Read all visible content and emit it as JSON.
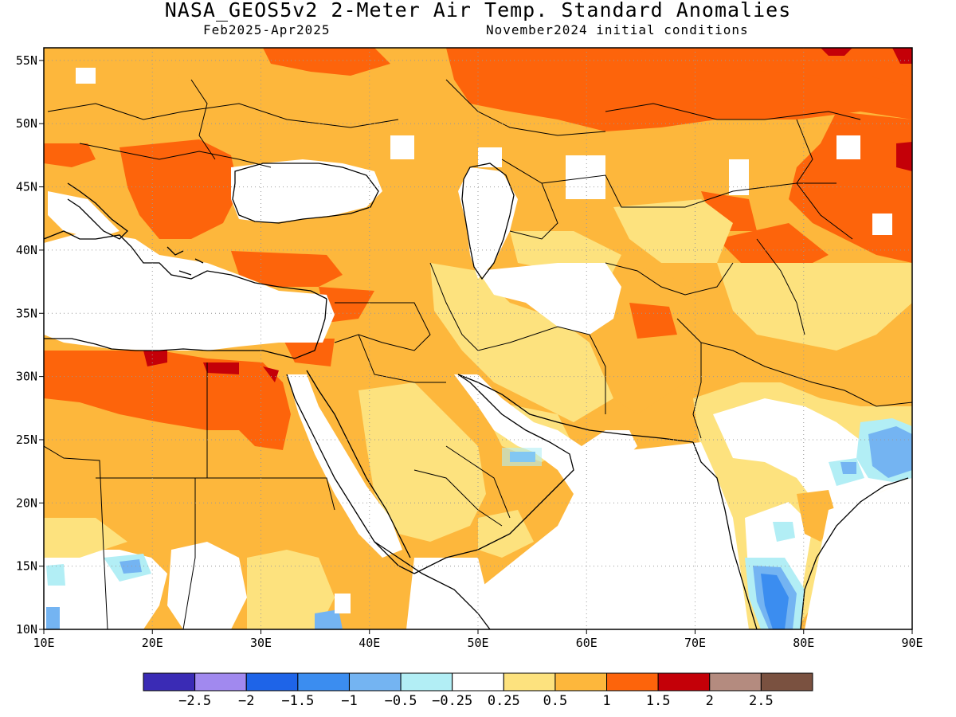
{
  "header": {
    "title": "NASA_GEOS5v2 2-Meter Air Temp. Standard Anomalies",
    "period": "Feb2025-Apr2025",
    "initial": "November2024 initial conditions"
  },
  "map": {
    "lon_range": [
      10,
      90
    ],
    "lat_range": [
      10,
      56
    ],
    "lon_ticks": [
      "10E",
      "20E",
      "30E",
      "40E",
      "50E",
      "60E",
      "70E",
      "80E",
      "90E"
    ],
    "lat_ticks": [
      "10N",
      "15N",
      "20N",
      "25N",
      "30N",
      "35N",
      "40N",
      "45N",
      "50N",
      "55N"
    ],
    "grid": true
  },
  "colorbar": {
    "colors": [
      "#3a2bb5",
      "#a189ef",
      "#1e64e8",
      "#3b8df0",
      "#74b4f2",
      "#b2eef5",
      "#ffffff",
      "#fde27e",
      "#fdb73c",
      "#fd640b",
      "#c40008",
      "#b48b7f",
      "#7a5140"
    ],
    "labels": [
      "-2.5",
      "-2",
      "-1.5",
      "-1",
      "-0.5",
      "-0.25",
      "0.25",
      "0.5",
      "1",
      "1.5",
      "2",
      "2.5"
    ]
  },
  "palette": {
    "warm1": "#fde27e",
    "warm2": "#fdb73c",
    "warm3": "#fd640b",
    "warm4": "#c40008",
    "cool1": "#b2eef5",
    "cool2": "#74b4f2",
    "cool3": "#3b8df0"
  }
}
